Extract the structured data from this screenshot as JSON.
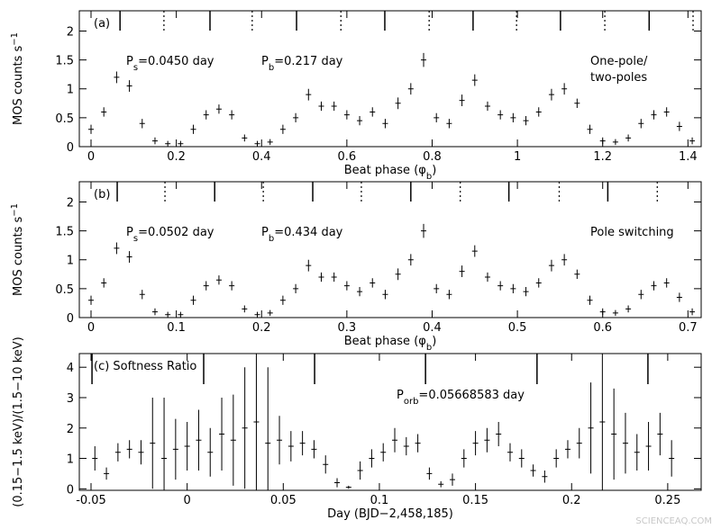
{
  "chart_data": [
    {
      "type": "errorbar",
      "panel_label": "(a)",
      "annotations": [
        {
          "text": "P",
          "sub": "s",
          "rest": "=0.0450 day"
        },
        {
          "text": "P",
          "sub": "b",
          "rest": "=0.217 day"
        },
        {
          "text": "One-pole/"
        },
        {
          "text": "two-poles"
        }
      ],
      "xlabel": {
        "text": "Beat phase (φ",
        "sub": "b",
        "rest": ")"
      },
      "ylabel": {
        "text": "MOS counts s",
        "sup": "−1"
      },
      "x": [
        0,
        0.03,
        0.06,
        0.09,
        0.12,
        0.15,
        0.18,
        0.21,
        0.24,
        0.27,
        0.3,
        0.33,
        0.36,
        0.39,
        0.42,
        0.45,
        0.48,
        0.51,
        0.54,
        0.57,
        0.6,
        0.63,
        0.66,
        0.69,
        0.72,
        0.75,
        0.78,
        0.81,
        0.84,
        0.87,
        0.9,
        0.93,
        0.96,
        0.99,
        1.02,
        1.05,
        1.08,
        1.11,
        1.14,
        1.17,
        1.2,
        1.23,
        1.26,
        1.29,
        1.32,
        1.35,
        1.38,
        1.41
      ],
      "values": [
        0.3,
        0.6,
        1.2,
        1.05,
        0.4,
        0.1,
        0.05,
        0.05,
        0.3,
        0.55,
        0.65,
        0.55,
        0.15,
        0.05,
        0.08,
        0.3,
        0.5,
        0.9,
        0.7,
        0.7,
        0.55,
        0.45,
        0.6,
        0.4,
        0.75,
        1.0,
        1.5,
        0.5,
        0.4,
        0.8,
        1.15,
        0.7,
        0.55,
        0.5,
        0.45,
        0.6,
        0.9,
        1.0,
        0.75,
        0.3,
        0.1,
        0.08,
        0.15,
        0.4,
        0.55,
        0.6,
        0.35,
        0.1
      ],
      "errors": [
        0.08,
        0.08,
        0.1,
        0.1,
        0.08,
        0.06,
        0.05,
        0.05,
        0.08,
        0.08,
        0.08,
        0.08,
        0.06,
        0.05,
        0.05,
        0.08,
        0.08,
        0.1,
        0.08,
        0.08,
        0.08,
        0.08,
        0.08,
        0.08,
        0.1,
        0.1,
        0.12,
        0.08,
        0.08,
        0.1,
        0.1,
        0.08,
        0.08,
        0.08,
        0.08,
        0.08,
        0.1,
        0.1,
        0.08,
        0.08,
        0.06,
        0.05,
        0.06,
        0.08,
        0.08,
        0.08,
        0.08,
        0.06
      ],
      "solid_markers": [
        0.068,
        0.279,
        0.482,
        0.689,
        0.896,
        1.101,
        1.309
      ],
      "dotted_markers": [
        0.171,
        0.378,
        0.586,
        0.793,
        0.998,
        1.205,
        1.412
      ],
      "color": "#000000",
      "xlim": [
        -0.0275,
        1.431
      ],
      "ylim": [
        0,
        2.35
      ],
      "xticks": [
        0,
        0.2,
        0.4,
        0.6,
        0.8,
        1,
        1.2,
        1.4
      ],
      "yticks": [
        0,
        0.5,
        1,
        1.5,
        2
      ]
    },
    {
      "type": "errorbar",
      "panel_label": "(b)",
      "annotations": [
        {
          "text": "P",
          "sub": "s",
          "rest": "=0.0502 day"
        },
        {
          "text": "P",
          "sub": "b",
          "rest": "=0.434 day"
        },
        {
          "text": "Pole switching"
        }
      ],
      "xlabel": {
        "text": "Beat phase (φ",
        "sub": "b",
        "rest": ")"
      },
      "ylabel": {
        "text": "MOS counts s",
        "sup": "−1"
      },
      "x": [
        0,
        0.015,
        0.03,
        0.045,
        0.06,
        0.075,
        0.09,
        0.105,
        0.12,
        0.135,
        0.15,
        0.165,
        0.18,
        0.195,
        0.21,
        0.225,
        0.24,
        0.255,
        0.27,
        0.285,
        0.3,
        0.315,
        0.33,
        0.345,
        0.36,
        0.375,
        0.39,
        0.405,
        0.42,
        0.435,
        0.45,
        0.465,
        0.48,
        0.495,
        0.51,
        0.525,
        0.54,
        0.555,
        0.57,
        0.585,
        0.6,
        0.615,
        0.63,
        0.645,
        0.66,
        0.675,
        0.69,
        0.705
      ],
      "values": [
        0.3,
        0.6,
        1.2,
        1.05,
        0.4,
        0.1,
        0.05,
        0.05,
        0.3,
        0.55,
        0.65,
        0.55,
        0.15,
        0.05,
        0.08,
        0.3,
        0.5,
        0.9,
        0.7,
        0.7,
        0.55,
        0.45,
        0.6,
        0.4,
        0.75,
        1.0,
        1.5,
        0.5,
        0.4,
        0.8,
        1.15,
        0.7,
        0.55,
        0.5,
        0.45,
        0.6,
        0.9,
        1.0,
        0.75,
        0.3,
        0.1,
        0.08,
        0.15,
        0.4,
        0.55,
        0.6,
        0.35,
        0.1
      ],
      "errors": [
        0.08,
        0.08,
        0.1,
        0.1,
        0.08,
        0.06,
        0.05,
        0.05,
        0.08,
        0.08,
        0.08,
        0.08,
        0.06,
        0.05,
        0.05,
        0.08,
        0.08,
        0.1,
        0.08,
        0.08,
        0.08,
        0.08,
        0.08,
        0.08,
        0.1,
        0.1,
        0.12,
        0.08,
        0.08,
        0.1,
        0.1,
        0.08,
        0.08,
        0.08,
        0.08,
        0.08,
        0.1,
        0.1,
        0.08,
        0.08,
        0.06,
        0.05,
        0.06,
        0.08,
        0.08,
        0.08,
        0.08,
        0.06
      ],
      "solid_markers": [
        0.0307,
        0.145,
        0.26,
        0.375,
        0.49,
        0.606
      ],
      "dotted_markers": [
        0.0867,
        0.202,
        0.317,
        0.433,
        0.549,
        0.664
      ],
      "color": "#000000",
      "xlim": [
        -0.01375,
        0.7155
      ],
      "ylim": [
        0,
        2.35
      ],
      "xticks": [
        0,
        0.1,
        0.2,
        0.3,
        0.4,
        0.5,
        0.6,
        0.7
      ],
      "yticks": [
        0,
        0.5,
        1,
        1.5,
        2
      ]
    },
    {
      "type": "errorbar",
      "panel_label": "(c) Softness Ratio",
      "annotations": [
        {
          "text": "P",
          "sub": "orb",
          "rest": "=0.05668583 day"
        }
      ],
      "xlabel": {
        "text": "Day (BJD−2,458,185)"
      },
      "ylabel": {
        "text": "(0.15−1.5 keV)/(1.5−10 keV)"
      },
      "x": [
        -0.048,
        -0.042,
        -0.036,
        -0.03,
        -0.024,
        -0.018,
        -0.012,
        -0.006,
        0,
        0.006,
        0.012,
        0.018,
        0.024,
        0.03,
        0.036,
        0.042,
        0.048,
        0.054,
        0.06,
        0.066,
        0.072,
        0.078,
        0.084,
        0.09,
        0.096,
        0.102,
        0.108,
        0.114,
        0.12,
        0.126,
        0.132,
        0.138,
        0.144,
        0.15,
        0.156,
        0.162,
        0.168,
        0.174,
        0.18,
        0.186,
        0.192,
        0.198,
        0.204,
        0.21,
        0.216,
        0.222,
        0.228,
        0.234,
        0.24,
        0.246,
        0.252
      ],
      "values": [
        1.0,
        0.5,
        1.2,
        1.3,
        1.2,
        1.5,
        1.0,
        1.3,
        1.4,
        1.6,
        1.2,
        1.8,
        1.6,
        2.0,
        2.2,
        1.5,
        1.6,
        1.4,
        1.5,
        1.3,
        0.8,
        0.2,
        0.05,
        0.6,
        1.0,
        1.2,
        1.6,
        1.4,
        1.5,
        0.5,
        0.15,
        0.3,
        1.0,
        1.5,
        1.6,
        1.8,
        1.2,
        1.0,
        0.6,
        0.4,
        1.0,
        1.3,
        1.5,
        2.0,
        2.2,
        1.8,
        1.5,
        1.2,
        1.4,
        1.8,
        1.0
      ],
      "errors": [
        0.4,
        0.2,
        0.3,
        0.3,
        0.4,
        1.5,
        2.0,
        1.0,
        0.8,
        1.0,
        0.8,
        1.2,
        1.5,
        2.0,
        2.5,
        2.5,
        0.8,
        0.5,
        0.4,
        0.3,
        0.3,
        0.15,
        0.05,
        0.3,
        0.3,
        0.3,
        0.4,
        0.3,
        0.3,
        0.2,
        0.1,
        0.2,
        0.3,
        0.4,
        0.4,
        0.4,
        0.3,
        0.3,
        0.2,
        0.2,
        0.3,
        0.3,
        0.5,
        1.5,
        2.5,
        1.5,
        1.0,
        0.6,
        0.8,
        0.7,
        0.6
      ],
      "solid_markers": [
        -0.0495,
        0.0086,
        0.0663,
        0.124,
        0.182,
        0.2397
      ],
      "color": "#000000",
      "xlim": [
        -0.0561,
        0.2674
      ],
      "ylim": [
        -0.05,
        4.45
      ],
      "xticks": [
        -0.05,
        0,
        0.05,
        0.1,
        0.15,
        0.2,
        0.25
      ],
      "yticks": [
        0,
        1,
        2,
        3,
        4
      ]
    }
  ],
  "watermark": "SCIENCEAQ.COM"
}
